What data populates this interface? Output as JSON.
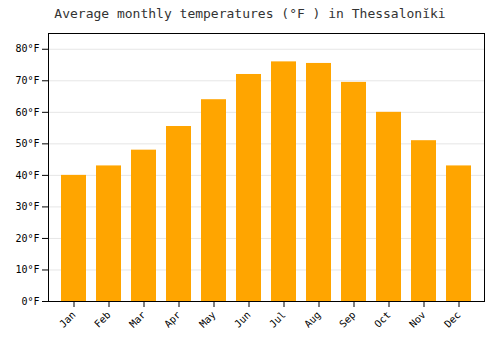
{
  "chart_data": {
    "type": "bar",
    "title": "Average monthly temperatures (°F ) in Thessalonĭki",
    "categories": [
      "Jan",
      "Feb",
      "Mar",
      "Apr",
      "May",
      "Jun",
      "Jul",
      "Aug",
      "Sep",
      "Oct",
      "Nov",
      "Dec"
    ],
    "values": [
      40,
      43,
      48,
      55.5,
      64,
      72,
      76,
      75.5,
      69.5,
      60,
      51,
      43
    ],
    "color": "#FFA500",
    "ylim": [
      0,
      85
    ],
    "yticks": [
      {
        "value": 0,
        "label": "0°F"
      },
      {
        "value": 10,
        "label": "10°F"
      },
      {
        "value": 20,
        "label": "20°F"
      },
      {
        "value": 30,
        "label": "30°F"
      },
      {
        "value": 40,
        "label": "40°F"
      },
      {
        "value": 50,
        "label": "50°F"
      },
      {
        "value": 60,
        "label": "60°F"
      },
      {
        "value": 70,
        "label": "70°F"
      },
      {
        "value": 80,
        "label": "80°F"
      }
    ],
    "grid": true
  }
}
